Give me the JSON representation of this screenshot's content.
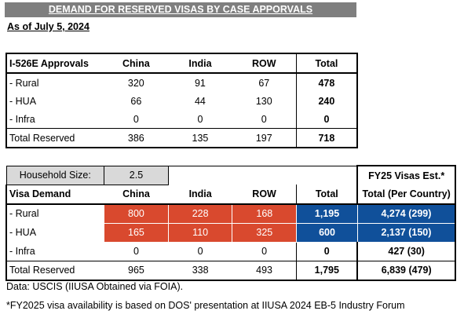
{
  "title": "DEMAND FOR RESERVED VISAS BY CASE APPORVALS",
  "as_of": "As of July 5, 2024",
  "approvals": {
    "headers": [
      "I-526E Approvals",
      "China",
      "India",
      "ROW",
      "Total"
    ],
    "rows": [
      {
        "label": "- Rural",
        "china": "320",
        "india": "91",
        "row": "67",
        "total": "478"
      },
      {
        "label": "- HUA",
        "china": "66",
        "india": "44",
        "row": "130",
        "total": "240"
      },
      {
        "label": "- Infra",
        "china": "0",
        "india": "0",
        "row": "0",
        "total": "0"
      }
    ],
    "total": {
      "label": "Total Reserved",
      "china": "386",
      "india": "135",
      "row": "197",
      "total": "718"
    }
  },
  "demand": {
    "household_label": "Household Size:",
    "household_value": "2.5",
    "fy25_header": "FY25 Visas Est.*",
    "headers": [
      "Visa Demand",
      "China",
      "India",
      "ROW",
      "Total",
      "Total (Per Country)"
    ],
    "rows": [
      {
        "label": "- Rural",
        "china": "800",
        "india": "228",
        "row": "168",
        "total": "1,195",
        "fy25": "4,274 (299)"
      },
      {
        "label": "- HUA",
        "china": "165",
        "india": "110",
        "row": "325",
        "total": "600",
        "fy25": "2,137 (150)"
      },
      {
        "label": "- Infra",
        "china": "0",
        "india": "0",
        "row": "0",
        "total": "0",
        "fy25": "427 (30)"
      }
    ],
    "total": {
      "label": "Total Reserved",
      "china": "965",
      "india": "338",
      "row": "493",
      "total": "1,795",
      "fy25": "6,839 (479)"
    }
  },
  "notes": {
    "source": "Data: USCIS (IIUSA Obtained via FOIA).",
    "footnote": "*FY2025 visa availability is based on DOS' presentation at IIUSA 2024 EB-5 Industry Forum"
  },
  "colors": {
    "highlight_red": "#d9492e",
    "highlight_blue": "#10509a",
    "title_gray": "#7f7f7f"
  }
}
